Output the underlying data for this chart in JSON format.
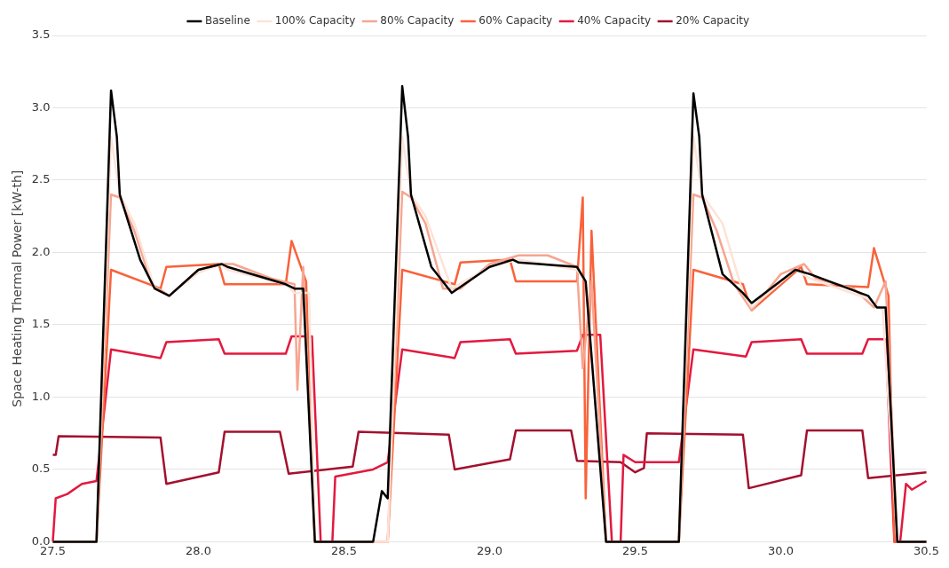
{
  "chart_data": {
    "type": "line",
    "ylabel": "Space Heating Thermal Power [kW-th]",
    "xlim": [
      27.5,
      30.5
    ],
    "xticks": [
      27.5,
      {
        "value": 28,
        "label": "28.0"
      },
      28.5,
      {
        "value": 29,
        "label": "29.0"
      },
      29.5,
      {
        "value": 30,
        "label": "30.0"
      },
      30.5
    ],
    "ylim": [
      0,
      3.5
    ],
    "yticks": [
      {
        "value": 0,
        "label": "0.0"
      },
      0.5,
      {
        "value": 1,
        "label": "1.0"
      },
      1.5,
      {
        "value": 2,
        "label": "2.0"
      },
      2.5,
      {
        "value": 3,
        "label": "3.0"
      },
      3.5
    ],
    "grid": "y",
    "legend": "top",
    "marker": "none",
    "line_style": "solid",
    "series": [
      {
        "name": "Baseline",
        "color": "#000000",
        "x": [
          27.5,
          27.65,
          27.7,
          27.72,
          27.73,
          27.8,
          27.85,
          27.9,
          28.0,
          28.08,
          28.1,
          28.3,
          28.33,
          28.36,
          28.4,
          28.6,
          28.63,
          28.65,
          28.7,
          28.72,
          28.73,
          28.8,
          28.87,
          29.0,
          29.08,
          29.1,
          29.3,
          29.33,
          29.4,
          29.65,
          29.7,
          29.72,
          29.73,
          29.8,
          29.87,
          29.9,
          30.05,
          30.1,
          30.3,
          30.33,
          30.36,
          30.4,
          30.5
        ],
        "values": [
          0,
          0,
          3.12,
          2.8,
          2.4,
          1.95,
          1.75,
          1.7,
          1.88,
          1.92,
          1.9,
          1.78,
          1.75,
          1.75,
          0,
          0,
          0.35,
          0.3,
          3.15,
          2.8,
          2.4,
          1.9,
          1.72,
          1.9,
          1.95,
          1.93,
          1.9,
          1.8,
          0,
          0,
          3.1,
          2.8,
          2.4,
          1.85,
          1.72,
          1.65,
          1.88,
          1.85,
          1.7,
          1.62,
          1.62,
          0,
          0
        ]
      },
      {
        "name": "100% Capacity",
        "color": "#fde3d8",
        "x": [
          27.5,
          27.65,
          27.7,
          27.73,
          27.78,
          27.85,
          27.9,
          28.0,
          28.08,
          28.1,
          28.3,
          28.33,
          28.38,
          28.4,
          28.65,
          28.7,
          28.73,
          28.78,
          28.87,
          29.0,
          29.1,
          29.3,
          29.33,
          29.4,
          29.65,
          29.7,
          29.73,
          29.8,
          29.87,
          29.9,
          30.05,
          30.1,
          30.3,
          30.35,
          30.4,
          30.5
        ],
        "values": [
          0,
          0,
          2.8,
          2.4,
          2.2,
          1.75,
          1.7,
          1.86,
          1.92,
          1.88,
          1.78,
          1.72,
          1.72,
          0,
          0,
          2.8,
          2.4,
          2.25,
          1.75,
          1.9,
          1.95,
          1.88,
          1.8,
          0,
          0,
          2.8,
          2.4,
          2.2,
          1.72,
          1.62,
          1.88,
          1.82,
          1.68,
          1.6,
          0,
          0
        ]
      },
      {
        "name": "80% Capacity",
        "color": "#f7a590",
        "x": [
          27.5,
          27.65,
          27.7,
          27.73,
          27.78,
          27.84,
          27.9,
          28.0,
          28.08,
          28.12,
          28.25,
          28.33,
          28.34,
          28.36,
          28.4,
          28.65,
          28.7,
          28.73,
          28.78,
          28.84,
          28.9,
          29.0,
          29.1,
          29.2,
          29.3,
          29.32,
          29.35,
          29.4,
          29.65,
          29.7,
          29.73,
          29.78,
          29.84,
          29.9,
          30.0,
          30.08,
          30.12,
          30.25,
          30.32,
          30.36,
          30.4,
          30.5
        ],
        "values": [
          0,
          0,
          2.4,
          2.38,
          2.15,
          1.78,
          1.7,
          1.88,
          1.92,
          1.92,
          1.82,
          1.78,
          1.05,
          1.9,
          0,
          0,
          2.42,
          2.38,
          2.2,
          1.75,
          1.75,
          1.92,
          1.98,
          1.98,
          1.9,
          1.2,
          1.8,
          0,
          0,
          2.4,
          2.38,
          2.15,
          1.78,
          1.6,
          1.85,
          1.92,
          1.82,
          1.75,
          1.62,
          1.8,
          0,
          0
        ]
      },
      {
        "name": "60% Capacity",
        "color": "#f9623a",
        "x": [
          27.5,
          27.65,
          27.7,
          27.87,
          27.89,
          28.07,
          28.09,
          28.3,
          28.32,
          28.37,
          28.4,
          28.65,
          28.7,
          28.88,
          28.9,
          29.07,
          29.09,
          29.3,
          29.32,
          29.33,
          29.35,
          29.4,
          29.65,
          29.7,
          29.87,
          29.9,
          30.07,
          30.09,
          30.3,
          30.32,
          30.37,
          30.39,
          30.5
        ],
        "values": [
          0,
          0,
          1.88,
          1.75,
          1.9,
          1.92,
          1.78,
          1.78,
          2.08,
          1.8,
          0,
          0,
          1.88,
          1.78,
          1.93,
          1.95,
          1.8,
          1.8,
          2.38,
          0.3,
          2.15,
          0,
          0,
          1.88,
          1.78,
          1.6,
          1.9,
          1.78,
          1.76,
          2.03,
          1.7,
          0,
          0
        ]
      },
      {
        "name": "40% Capacity",
        "color": "#e3193f",
        "x": [
          27.5,
          27.51,
          27.55,
          27.6,
          27.65,
          27.7,
          27.87,
          27.89,
          28.07,
          28.09,
          28.3,
          28.32,
          28.39,
          28.42,
          28.46,
          28.47,
          28.6,
          28.65,
          28.7,
          28.88,
          28.9,
          29.07,
          29.09,
          29.3,
          29.32,
          29.38,
          29.42,
          29.45,
          29.46,
          29.5,
          29.55,
          29.65,
          29.7,
          29.88,
          29.9,
          30.07,
          30.09,
          30.28,
          30.3,
          30.36,
          30.39,
          30.41,
          30.43,
          30.45,
          30.5
        ],
        "values": [
          0,
          0.3,
          0.33,
          0.4,
          0.42,
          1.33,
          1.27,
          1.38,
          1.4,
          1.3,
          1.3,
          1.42,
          1.42,
          0,
          0,
          0.45,
          0.5,
          0.55,
          1.33,
          1.27,
          1.38,
          1.4,
          1.3,
          1.32,
          1.43,
          1.43,
          0,
          0,
          0.6,
          0.55,
          0.55,
          0.55,
          1.33,
          1.28,
          1.38,
          1.4,
          1.3,
          1.3,
          1.4,
          1.4,
          0,
          0,
          0.4,
          0.36,
          0.42
        ]
      },
      {
        "name": "20% Capacity",
        "color": "#a3102e",
        "x": [
          27.5,
          27.51,
          27.52,
          27.87,
          27.89,
          28.07,
          28.09,
          28.28,
          28.31,
          28.53,
          28.55,
          28.86,
          28.88,
          29.07,
          29.09,
          29.28,
          29.3,
          29.45,
          29.5,
          29.53,
          29.54,
          29.87,
          29.89,
          30.07,
          30.09,
          30.28,
          30.3,
          30.5
        ],
        "values": [
          0.6,
          0.6,
          0.73,
          0.72,
          0.4,
          0.48,
          0.76,
          0.76,
          0.47,
          0.52,
          0.76,
          0.74,
          0.5,
          0.57,
          0.77,
          0.77,
          0.56,
          0.55,
          0.48,
          0.51,
          0.75,
          0.74,
          0.37,
          0.46,
          0.77,
          0.77,
          0.44,
          0.48
        ]
      }
    ]
  }
}
